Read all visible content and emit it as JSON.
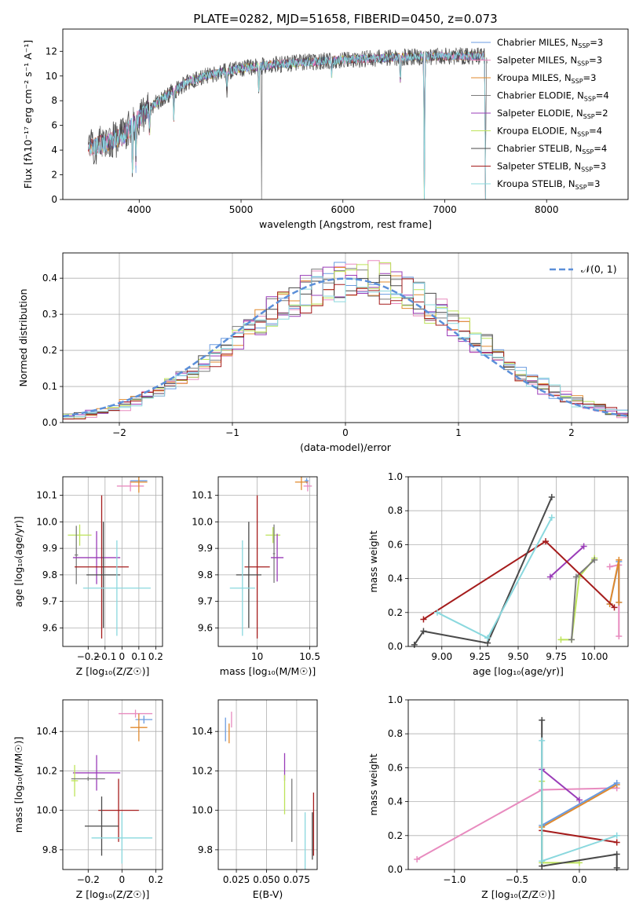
{
  "figure_title": "PLATE=0282, MJD=51658, FIBERID=0450, z=0.073",
  "colors": {
    "chabrier_miles": "#6a9be0",
    "salpeter_miles": "#e88bbf",
    "kroupa_miles": "#e0892c",
    "chabrier_elodie": "#7b7b7b",
    "salpeter_elodie": "#9a3cb8",
    "kroupa_elodie": "#bde35a",
    "chabrier_stelib": "#4a4a4a",
    "salpeter_stelib": "#a51c1c",
    "kroupa_stelib": "#8ad8de",
    "gauss": "#5b8fd9",
    "grid": "#b0b0b0"
  },
  "chart_data": [
    {
      "id": "spectrum",
      "type": "line",
      "title": "PLATE=0282, MJD=51658, FIBERID=0450, z=0.073",
      "xlabel": "wavelength [Angstrom, rest frame]",
      "ylabel": "Flux [fλ10⁻¹⁷ erg cm⁻² s⁻¹ A⁻¹]",
      "xlim": [
        3250,
        8800
      ],
      "ylim": [
        0,
        13.8
      ],
      "xticks": [
        4000,
        5000,
        6000,
        7000,
        8000
      ],
      "yticks": [
        0,
        2,
        4,
        6,
        8,
        10,
        12
      ],
      "grid": false,
      "legend_position": "right",
      "continuum": [
        [
          3500,
          4.2
        ],
        [
          3700,
          4.6
        ],
        [
          3850,
          5.2
        ],
        [
          3950,
          6.2
        ],
        [
          4100,
          7.4
        ],
        [
          4300,
          8.6
        ],
        [
          4500,
          9.6
        ],
        [
          4700,
          10.1
        ],
        [
          5000,
          10.6
        ],
        [
          5300,
          10.9
        ],
        [
          5600,
          11.1
        ],
        [
          6000,
          11.3
        ],
        [
          6500,
          11.5
        ],
        [
          7000,
          11.6
        ],
        [
          7400,
          11.6
        ]
      ],
      "series": [
        {
          "key": "chabrier_miles",
          "name": "Chabrier MILES, N",
          "sub": "SSP",
          "suffix": "=3"
        },
        {
          "key": "salpeter_miles",
          "name": "Salpeter MILES, N",
          "sub": "SSP",
          "suffix": "=3"
        },
        {
          "key": "kroupa_miles",
          "name": "Kroupa MILES, N",
          "sub": "SSP",
          "suffix": "=3"
        },
        {
          "key": "chabrier_elodie",
          "name": "Chabrier ELODIE, N",
          "sub": "SSP",
          "suffix": "=4"
        },
        {
          "key": "salpeter_elodie",
          "name": "Salpeter ELODIE, N",
          "sub": "SSP",
          "suffix": "=2"
        },
        {
          "key": "kroupa_elodie",
          "name": "Kroupa ELODIE, N",
          "sub": "SSP",
          "suffix": "=4"
        },
        {
          "key": "chabrier_stelib",
          "name": "Chabrier STELIB, N",
          "sub": "SSP",
          "suffix": "=4"
        },
        {
          "key": "salpeter_stelib",
          "name": "Salpeter STELIB, N",
          "sub": "SSP",
          "suffix": "=3"
        },
        {
          "key": "kroupa_stelib",
          "name": "Kroupa STELIB, N",
          "sub": "SSP",
          "suffix": "=3"
        }
      ]
    },
    {
      "id": "residuals",
      "type": "bar",
      "xlabel": "(data-model)/error",
      "ylabel": "Normed distribution",
      "xlim": [
        -2.5,
        2.5
      ],
      "ylim": [
        0,
        0.47
      ],
      "xticks": [
        -2,
        -1,
        0,
        1,
        2
      ],
      "yticks": [
        0.0,
        0.1,
        0.2,
        0.3,
        0.4
      ],
      "grid": true,
      "legend_position": "top-right",
      "legend_label": "𝒩(0, 1)",
      "bin_width": 0.1
    },
    {
      "id": "age_vs_z",
      "type": "scatter",
      "xlabel": "Z [log₁₀(Z/Z☉)]",
      "ylabel": "age  [log₁₀(age/yr)]",
      "xlim": [
        -0.35,
        0.24
      ],
      "ylim": [
        9.53,
        10.17
      ],
      "xticks": [
        -0.2,
        -0.1,
        0.0,
        0.1,
        0.2
      ],
      "yticks": [
        9.6,
        9.7,
        9.8,
        9.9,
        10.0,
        10.1
      ],
      "grid": true,
      "points": [
        {
          "key": "salpeter_miles",
          "x": 0.05,
          "y": 10.135,
          "xe": 0.08,
          "ye": 0.02
        },
        {
          "key": "chabrier_miles",
          "x": 0.1,
          "y": 10.155,
          "xe": 0.05,
          "ye": 0.01
        },
        {
          "key": "kroupa_miles",
          "x": 0.1,
          "y": 10.15,
          "xe": 0.05,
          "ye": 0.04
        },
        {
          "key": "kroupa_elodie",
          "x": -0.25,
          "y": 9.95,
          "xe": 0.07,
          "ye": 0.04
        },
        {
          "key": "chabrier_elodie",
          "x": -0.27,
          "y": 9.875,
          "xe": 0.01,
          "ye": 0.11
        },
        {
          "key": "salpeter_elodie",
          "x": -0.15,
          "y": 9.865,
          "xe": 0.14,
          "ye": 0.1
        },
        {
          "key": "salpeter_stelib",
          "x": -0.12,
          "y": 9.83,
          "xe": 0.16,
          "ye": 0.27
        },
        {
          "key": "chabrier_stelib",
          "x": -0.11,
          "y": 9.8,
          "xe": 0.1,
          "ye": 0.2
        },
        {
          "key": "kroupa_stelib",
          "x": -0.03,
          "y": 9.75,
          "xe": 0.2,
          "ye": 0.18
        }
      ]
    },
    {
      "id": "age_vs_mass",
      "type": "scatter",
      "xlabel": "mass [log₁₀(M/M☉)]",
      "ylabel": "",
      "xlim": [
        9.63,
        10.57
      ],
      "ylim": [
        9.53,
        10.17
      ],
      "xticks": [
        10.0,
        10.5
      ],
      "yticks": [
        9.6,
        9.7,
        9.8,
        9.9,
        10.0,
        10.1
      ],
      "grid": true,
      "points": [
        {
          "key": "salpeter_miles",
          "x": 10.48,
          "y": 10.135,
          "xe": 0.04,
          "ye": 0.02
        },
        {
          "key": "chabrier_miles",
          "x": 10.47,
          "y": 10.155,
          "xe": 0.02,
          "ye": 0.01
        },
        {
          "key": "kroupa_miles",
          "x": 10.42,
          "y": 10.15,
          "xe": 0.06,
          "ye": 0.03
        },
        {
          "key": "kroupa_elodie",
          "x": 10.15,
          "y": 9.95,
          "xe": 0.07,
          "ye": 0.03
        },
        {
          "key": "chabrier_elodie",
          "x": 10.16,
          "y": 9.88,
          "xe": 0.01,
          "ye": 0.11
        },
        {
          "key": "salpeter_elodie",
          "x": 10.19,
          "y": 9.865,
          "xe": 0.06,
          "ye": 0.09
        },
        {
          "key": "salpeter_stelib",
          "x": 10.0,
          "y": 9.83,
          "xe": 0.12,
          "ye": 0.27
        },
        {
          "key": "chabrier_stelib",
          "x": 9.92,
          "y": 9.8,
          "xe": 0.12,
          "ye": 0.2
        },
        {
          "key": "kroupa_stelib",
          "x": 9.86,
          "y": 9.75,
          "xe": 0.12,
          "ye": 0.18
        }
      ]
    },
    {
      "id": "weight_vs_age",
      "type": "line",
      "xlabel": "age  [log₁₀(age/yr)]",
      "ylabel": "mass weight",
      "xlim": [
        8.78,
        10.22
      ],
      "ylim": [
        0,
        1
      ],
      "xticks": [
        9.0,
        9.25,
        9.5,
        9.75,
        10.0
      ],
      "xtick_labels": [
        "9.00",
        "9.25",
        "9.50",
        "9.75",
        "10.00"
      ],
      "yticks": [
        0.0,
        0.2,
        0.4,
        0.6,
        0.8,
        1.0
      ],
      "grid": true,
      "series": [
        {
          "key": "salpeter_miles",
          "points": [
            [
              10.1,
              0.47
            ],
            [
              10.16,
              0.48
            ],
            [
              10.16,
              0.06
            ]
          ]
        },
        {
          "key": "chabrier_miles",
          "points": [
            [
              10.1,
              0.25
            ],
            [
              10.16,
              0.5
            ],
            [
              10.16,
              0.26
            ]
          ]
        },
        {
          "key": "kroupa_miles",
          "points": [
            [
              10.1,
              0.25
            ],
            [
              10.16,
              0.51
            ],
            [
              10.16,
              0.26
            ]
          ]
        },
        {
          "key": "kroupa_elodie",
          "points": [
            [
              9.78,
              0.04
            ],
            [
              9.85,
              0.04
            ],
            [
              9.9,
              0.41
            ],
            [
              10.0,
              0.52
            ]
          ]
        },
        {
          "key": "chabrier_elodie",
          "points": [
            [
              9.85,
              0.04
            ],
            [
              9.88,
              0.41
            ],
            [
              10.0,
              0.51
            ]
          ]
        },
        {
          "key": "salpeter_elodie",
          "points": [
            [
              9.71,
              0.41
            ],
            [
              9.93,
              0.59
            ]
          ]
        },
        {
          "key": "salpeter_stelib",
          "points": [
            [
              8.88,
              0.16
            ],
            [
              9.68,
              0.62
            ],
            [
              10.13,
              0.23
            ]
          ]
        },
        {
          "key": "chabrier_stelib",
          "points": [
            [
              8.82,
              0.01
            ],
            [
              8.88,
              0.09
            ],
            [
              9.3,
              0.02
            ],
            [
              9.72,
              0.88
            ]
          ]
        },
        {
          "key": "kroupa_stelib",
          "points": [
            [
              8.97,
              0.2
            ],
            [
              9.3,
              0.05
            ],
            [
              9.72,
              0.76
            ]
          ]
        }
      ]
    },
    {
      "id": "mass_vs_z",
      "type": "scatter",
      "xlabel": "Z [log₁₀(Z/Z☉)]",
      "ylabel": "mass [log₁₀(M/M☉)]",
      "xlim": [
        -0.35,
        0.24
      ],
      "ylim": [
        9.7,
        10.56
      ],
      "xticks": [
        -0.2,
        0.0,
        0.2
      ],
      "yticks": [
        9.8,
        10.0,
        10.2,
        10.4
      ],
      "grid": true,
      "points": [
        {
          "key": "salpeter_miles",
          "x": 0.08,
          "y": 10.49,
          "xe": 0.1,
          "ye": 0.02
        },
        {
          "key": "chabrier_miles",
          "x": 0.13,
          "y": 10.46,
          "xe": 0.05,
          "ye": 0.02
        },
        {
          "key": "kroupa_miles",
          "x": 0.1,
          "y": 10.42,
          "xe": 0.05,
          "ye": 0.07
        },
        {
          "key": "salpeter_elodie",
          "x": -0.15,
          "y": 10.19,
          "xe": 0.14,
          "ye": 0.09
        },
        {
          "key": "kroupa_elodie",
          "x": -0.28,
          "y": 10.15,
          "xe": 0.02,
          "ye": 0.08
        },
        {
          "key": "chabrier_elodie",
          "x": -0.2,
          "y": 10.16,
          "xe": 0.1,
          "ye": 0.01
        },
        {
          "key": "salpeter_stelib",
          "x": -0.02,
          "y": 10.0,
          "xe": 0.12,
          "ye": 0.16
        },
        {
          "key": "chabrier_stelib",
          "x": -0.12,
          "y": 9.92,
          "xe": 0.1,
          "ye": 0.15
        },
        {
          "key": "kroupa_stelib",
          "x": 0.0,
          "y": 9.86,
          "xe": 0.18,
          "ye": 0.13
        }
      ]
    },
    {
      "id": "mass_vs_ebv",
      "type": "scatter",
      "xlabel": "E(B-V)",
      "ylabel": "",
      "xlim": [
        0.01,
        0.092
      ],
      "ylim": [
        9.7,
        10.56
      ],
      "xticks": [
        0.025,
        0.05,
        0.075
      ],
      "xtick_labels": [
        "0.025",
        "0.050",
        "0.075"
      ],
      "yticks": [
        9.8,
        10.0,
        10.2,
        10.4
      ],
      "grid": true,
      "points": [
        {
          "key": "salpeter_miles",
          "x": 0.021,
          "y": 10.46,
          "ye": 0.04
        },
        {
          "key": "chabrier_miles",
          "x": 0.016,
          "y": 10.41,
          "ye": 0.06
        },
        {
          "key": "kroupa_miles",
          "x": 0.019,
          "y": 10.39,
          "ye": 0.05
        },
        {
          "key": "salpeter_elodie",
          "x": 0.065,
          "y": 10.22,
          "ye": 0.07
        },
        {
          "key": "kroupa_elodie",
          "x": 0.065,
          "y": 10.08,
          "ye": 0.1
        },
        {
          "key": "chabrier_elodie",
          "x": 0.071,
          "y": 10.0,
          "ye": 0.16
        },
        {
          "key": "kroupa_stelib",
          "x": 0.082,
          "y": 9.84,
          "ye": 0.15
        },
        {
          "key": "salpeter_stelib",
          "x": 0.089,
          "y": 9.93,
          "ye": 0.16
        },
        {
          "key": "chabrier_stelib",
          "x": 0.088,
          "y": 9.87,
          "ye": 0.12
        }
      ]
    },
    {
      "id": "weight_vs_z",
      "type": "line",
      "xlabel": "Z [log₁₀(Z/Z☉)]",
      "ylabel": "mass weight",
      "xlim": [
        -1.37,
        0.39
      ],
      "ylim": [
        0,
        1
      ],
      "xticks": [
        -1.0,
        -0.5,
        0.0
      ],
      "xtick_labels": [
        "−1.0",
        "−0.5",
        "0.0"
      ],
      "yticks": [
        0.0,
        0.2,
        0.4,
        0.6,
        0.8,
        1.0
      ],
      "grid": true,
      "series": [
        {
          "key": "salpeter_miles",
          "points": [
            [
              -1.3,
              0.06
            ],
            [
              -0.3,
              0.47
            ],
            [
              0.3,
              0.48
            ]
          ]
        },
        {
          "key": "kroupa_miles",
          "points": [
            [
              -0.3,
              0.25
            ],
            [
              0.3,
              0.5
            ]
          ]
        },
        {
          "key": "chabrier_miles",
          "points": [
            [
              -0.3,
              0.26
            ],
            [
              0.3,
              0.51
            ]
          ]
        },
        {
          "key": "salpeter_elodie",
          "points": [
            [
              -0.3,
              0.59
            ],
            [
              0.0,
              0.41
            ]
          ]
        },
        {
          "key": "kroupa_elodie",
          "points": [
            [
              -0.3,
              0.52
            ],
            [
              -0.3,
              0.04
            ],
            [
              0.0,
              0.04
            ]
          ]
        },
        {
          "key": "salpeter_stelib",
          "points": [
            [
              -0.3,
              0.23
            ],
            [
              0.3,
              0.16
            ]
          ]
        },
        {
          "key": "chabrier_stelib",
          "points": [
            [
              -0.3,
              0.88
            ],
            [
              -0.3,
              0.02
            ],
            [
              0.3,
              0.09
            ],
            [
              0.3,
              0.01
            ]
          ]
        },
        {
          "key": "kroupa_stelib",
          "points": [
            [
              -0.3,
              0.76
            ],
            [
              -0.3,
              0.05
            ],
            [
              0.3,
              0.2
            ]
          ]
        }
      ]
    }
  ]
}
